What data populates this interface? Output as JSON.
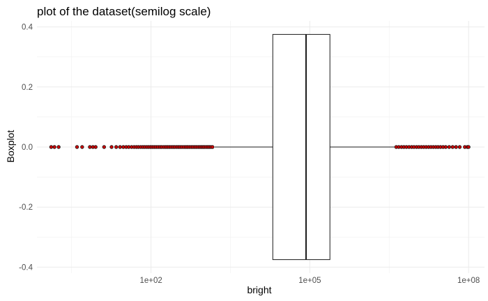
{
  "chart_data": {
    "type": "boxplot",
    "title": "plot of the dataset(semilog scale)",
    "xlabel": "bright",
    "ylabel": "Boxplot",
    "x_scale": "log10",
    "xlim": [
      0.7,
      200000000
    ],
    "ylim": [
      -0.42,
      0.42
    ],
    "x_ticks": [
      {
        "value": 100,
        "label": "1e+02"
      },
      {
        "value": 100000,
        "label": "1e+05"
      },
      {
        "value": 100000000,
        "label": "1e+08"
      }
    ],
    "y_ticks": [
      {
        "value": 0.4,
        "label": "0.4"
      },
      {
        "value": 0.2,
        "label": "0.2"
      },
      {
        "value": 0.0,
        "label": "0.0"
      },
      {
        "value": -0.2,
        "label": "-0.2"
      },
      {
        "value": -0.4,
        "label": "-0.4"
      }
    ],
    "grid": true,
    "box": {
      "q1": 20000,
      "median": 85000,
      "q3": 240000,
      "whisker_low": 1600,
      "whisker_high": 4000000,
      "ymin": -0.375,
      "ymax": 0.375
    },
    "outlier_color": "#cc0000",
    "outliers_low": [
      1.3,
      1.5,
      1.8,
      4,
      5,
      7,
      8,
      9,
      13,
      18,
      22,
      26,
      30,
      34,
      38,
      43,
      48,
      53,
      58,
      64,
      70,
      76,
      83,
      90,
      98,
      106,
      115,
      125,
      136,
      148,
      160,
      175,
      190,
      205,
      222,
      240,
      260,
      280,
      305,
      330,
      355,
      385,
      420,
      455,
      490,
      530,
      575,
      620,
      670,
      720,
      780,
      840,
      900,
      960,
      1020,
      1100,
      1180,
      1260,
      1350,
      1450
    ],
    "outliers_high": [
      4300000,
      4800000,
      5400000,
      6000000,
      6700000,
      7500000,
      8400000,
      9300000,
      10400000,
      11500000,
      12800000,
      14200000,
      15800000,
      17600000,
      19500000,
      21600000,
      24000000,
      26500000,
      29500000,
      33000000,
      37000000,
      43000000,
      50000000,
      58000000,
      68000000,
      85000000,
      95000000,
      100000000
    ]
  }
}
